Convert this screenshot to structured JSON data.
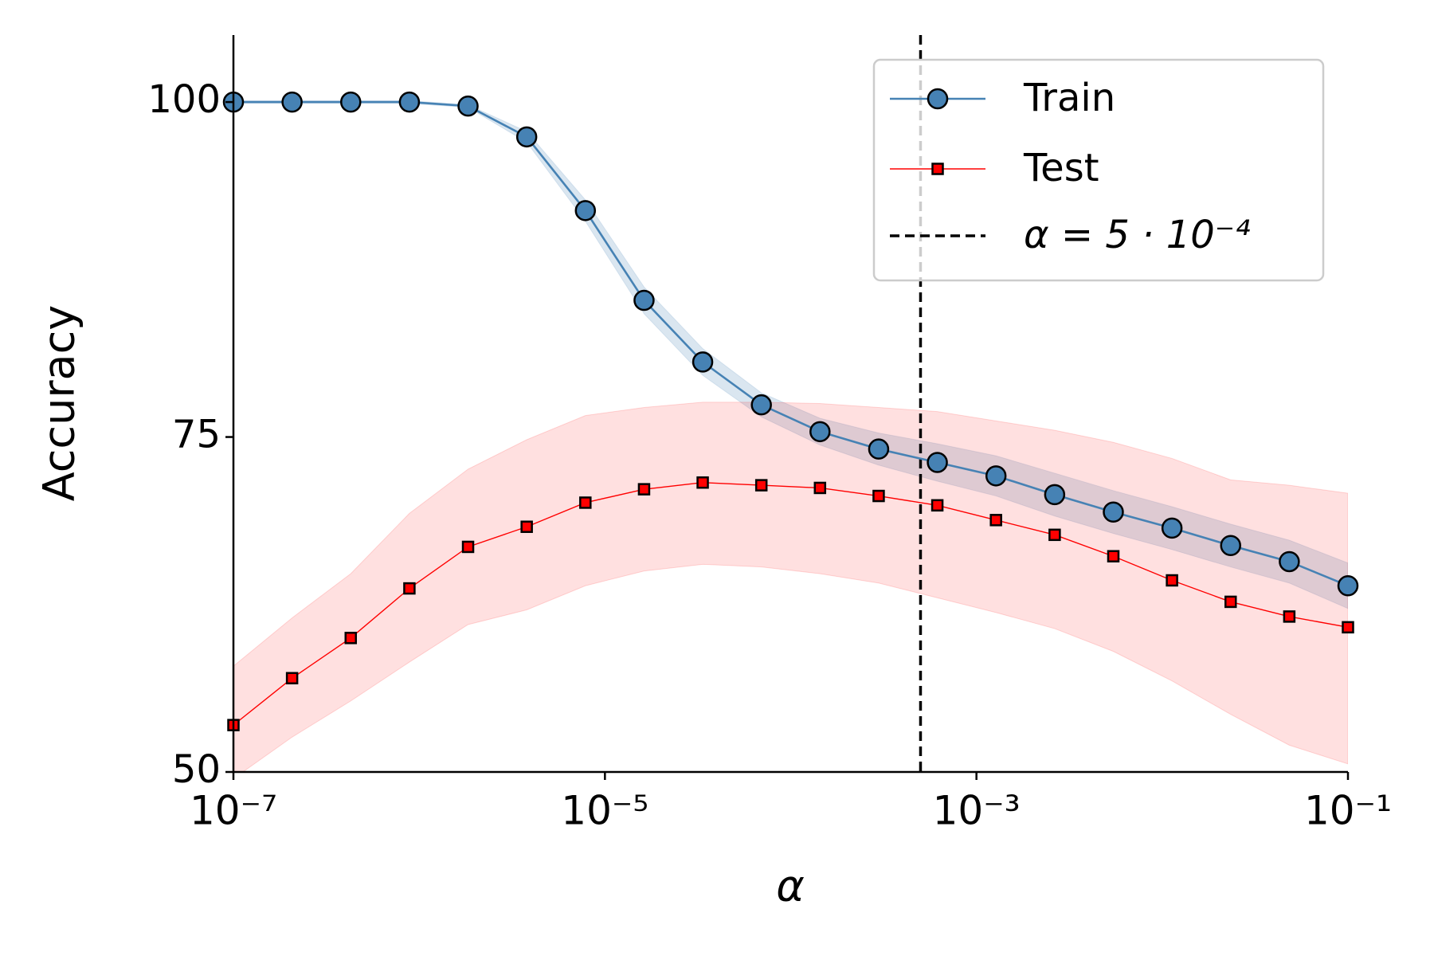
{
  "chart_data": {
    "type": "line",
    "xlabel": "α",
    "ylabel": "Accuracy",
    "x": [
      1e-07,
      2.069e-07,
      4.281e-07,
      8.859e-07,
      1.833e-06,
      3.793e-06,
      7.848e-06,
      1.624e-05,
      3.36e-05,
      6.952e-05,
      0.0001438,
      0.0002976,
      0.0006158,
      0.001274,
      0.002637,
      0.005456,
      0.01129,
      0.02336,
      0.04833,
      0.1
    ],
    "xscale": "log",
    "xlim": [
      1e-07,
      0.1
    ],
    "xticks": [
      {
        "value": 1e-07,
        "label": "10⁻⁷"
      },
      {
        "value": 1e-05,
        "label": "10⁻⁵"
      },
      {
        "value": 0.001,
        "label": "10⁻³"
      },
      {
        "value": 0.1,
        "label": "10⁻¹"
      }
    ],
    "ylim": [
      50,
      105
    ],
    "yticks": [
      50,
      75,
      100
    ],
    "grid": false,
    "legend": "upper right",
    "series": [
      {
        "name": "Train",
        "color": "#4682b4",
        "marker": "circle",
        "values": [
          100,
          100,
          100,
          100,
          99.7,
          97.4,
          91.9,
          85.2,
          80.6,
          77.4,
          75.4,
          74.1,
          73.1,
          72.1,
          70.7,
          69.4,
          68.2,
          66.9,
          65.7,
          63.9
        ],
        "lower": [
          99.9,
          99.9,
          99.9,
          99.9,
          99.6,
          97.0,
          91.1,
          84.2,
          79.6,
          76.5,
          74.4,
          72.9,
          71.7,
          70.6,
          69.1,
          67.8,
          66.6,
          65.3,
          64.1,
          62.2
        ],
        "upper": [
          100.1,
          100.1,
          100.1,
          100.1,
          99.8,
          97.8,
          92.7,
          86.2,
          81.6,
          78.3,
          76.4,
          75.3,
          74.5,
          73.6,
          72.3,
          71.0,
          69.8,
          68.5,
          67.3,
          65.6
        ]
      },
      {
        "name": "Test",
        "color": "#ff0000",
        "marker": "square",
        "values": [
          53.5,
          57.0,
          60.0,
          63.7,
          66.8,
          68.3,
          70.1,
          71.1,
          71.6,
          71.4,
          71.2,
          70.6,
          69.9,
          68.8,
          67.7,
          66.1,
          64.3,
          62.7,
          61.6,
          60.8
        ],
        "lower": [
          49.5,
          52.6,
          55.3,
          58.2,
          61.0,
          62.1,
          63.9,
          65.0,
          65.5,
          65.3,
          64.8,
          64.1,
          63.0,
          61.9,
          60.7,
          59.0,
          56.8,
          54.3,
          52.0,
          50.6
        ],
        "upper": [
          57.9,
          61.5,
          64.8,
          69.3,
          72.6,
          74.8,
          76.6,
          77.2,
          77.6,
          77.6,
          77.5,
          77.2,
          76.9,
          76.2,
          75.5,
          74.6,
          73.4,
          71.8,
          71.4,
          70.8
        ]
      }
    ],
    "vline": {
      "x": 0.0005,
      "label": "α = 5 · 10⁻⁴",
      "color": "#000000"
    }
  }
}
